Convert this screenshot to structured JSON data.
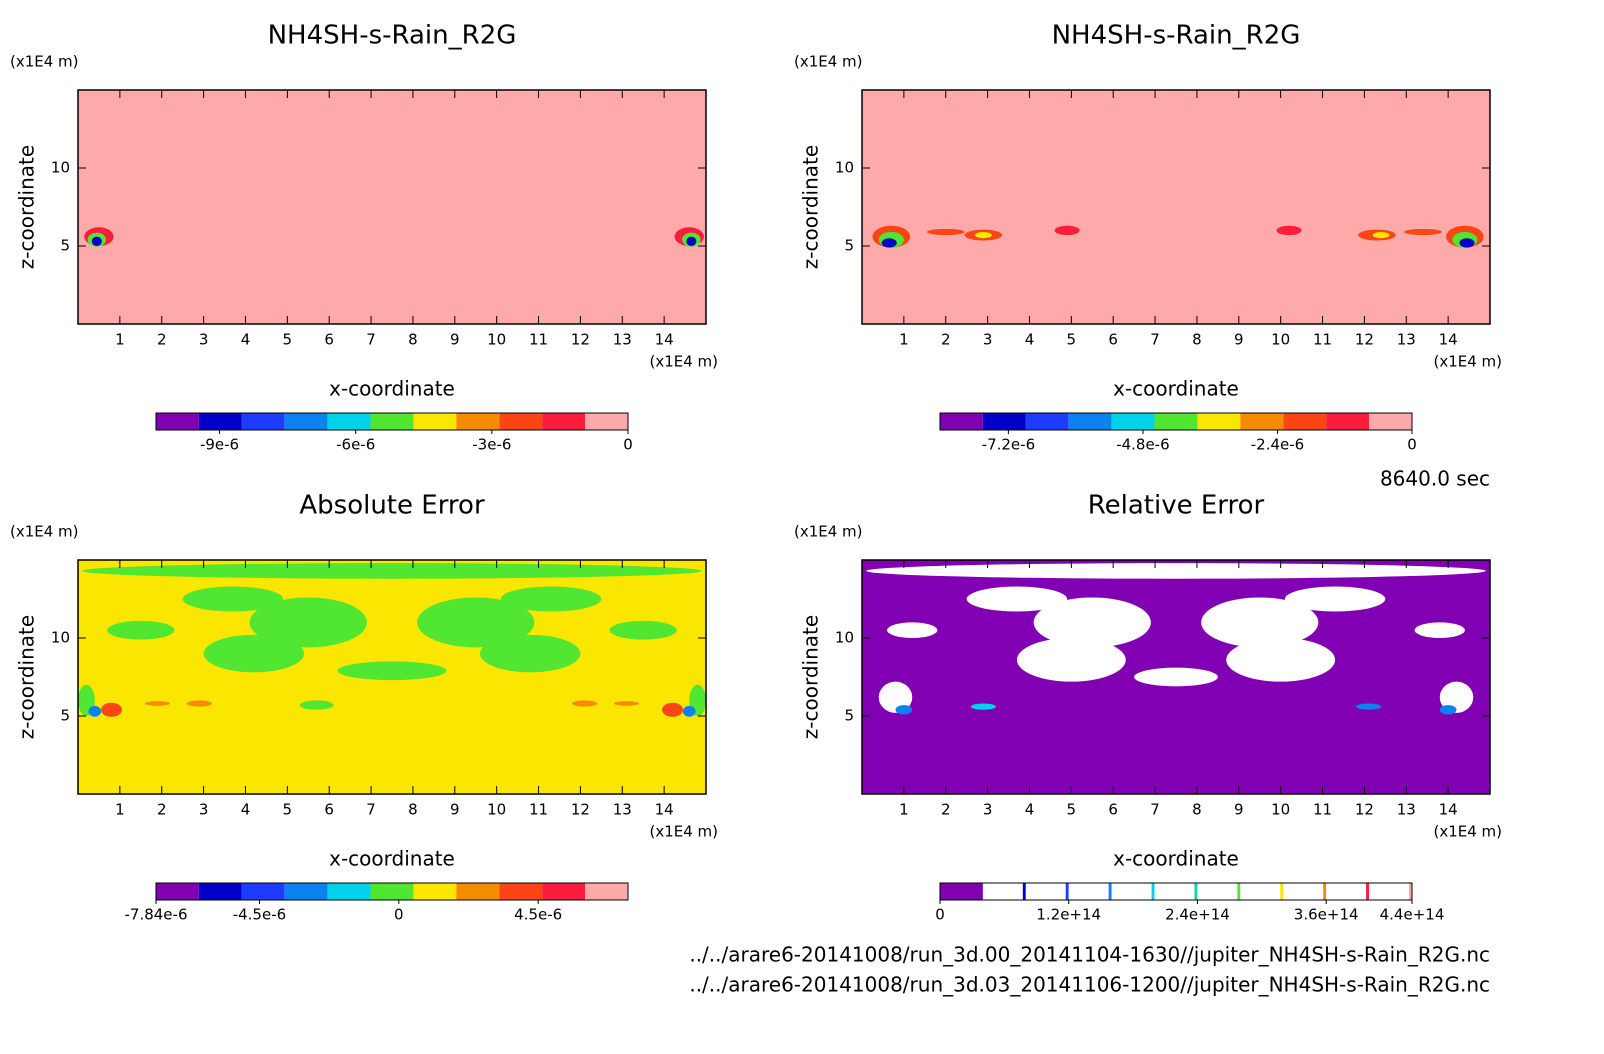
{
  "chart_data": [
    {
      "type": "contour",
      "title": "NH4SH-s-Rain_R2G",
      "xlabel": "x-coordinate",
      "ylabel": "z-coordinate",
      "x_units": "(x1E4 m)",
      "y_units": "(x1E4 m)",
      "xlim": [
        0,
        15
      ],
      "ylim": [
        0,
        15
      ],
      "xticks": [
        1,
        2,
        3,
        4,
        5,
        6,
        7,
        8,
        9,
        10,
        11,
        12,
        13,
        14
      ],
      "yticks": [
        5,
        10
      ],
      "background_color": "#ffaaaa",
      "colorbar": {
        "lim": [
          -1.04e-05,
          0
        ],
        "ticks": [
          {
            "value": -9e-06,
            "label": "-9e-6"
          },
          {
            "value": -6e-06,
            "label": "-6e-6"
          },
          {
            "value": -3e-06,
            "label": "-3e-6"
          },
          0
        ],
        "colors": [
          "#8200b4",
          "#0000c8",
          "#1e3cff",
          "#0a82f0",
          "#00d2ec",
          "#50e632",
          "#fae600",
          "#f58c00",
          "#fa4614",
          "#fa1e3c",
          "#ffaaaa"
        ]
      }
    },
    {
      "type": "contour",
      "title": "NH4SH-s-Rain_R2G",
      "xlabel": "x-coordinate",
      "ylabel": "z-coordinate",
      "x_units": "(x1E4 m)",
      "y_units": "(x1E4 m)",
      "xlim": [
        0,
        15
      ],
      "ylim": [
        0,
        15
      ],
      "xticks": [
        1,
        2,
        3,
        4,
        5,
        6,
        7,
        8,
        9,
        10,
        11,
        12,
        13,
        14
      ],
      "yticks": [
        5,
        10
      ],
      "background_color": "#ffaaaa",
      "colorbar": {
        "lim": [
          -8.42e-06,
          0
        ],
        "ticks": [
          {
            "value": -7.2e-06,
            "label": "-7.2e-6"
          },
          {
            "value": -4.8e-06,
            "label": "-4.8e-6"
          },
          {
            "value": -2.4e-06,
            "label": "-2.4e-6"
          },
          0
        ],
        "colors": [
          "#8200b4",
          "#0000c8",
          "#1e3cff",
          "#0a82f0",
          "#00d2ec",
          "#50e632",
          "#fae600",
          "#f58c00",
          "#fa4614",
          "#fa1e3c",
          "#ffaaaa"
        ]
      }
    },
    {
      "type": "contour",
      "title": "Absolute Error",
      "xlabel": "x-coordinate",
      "ylabel": "z-coordinate",
      "x_units": "(x1E4 m)",
      "y_units": "(x1E4 m)",
      "xlim": [
        0,
        15
      ],
      "ylim": [
        0,
        15
      ],
      "xticks": [
        1,
        2,
        3,
        4,
        5,
        6,
        7,
        8,
        9,
        10,
        11,
        12,
        13,
        14
      ],
      "yticks": [
        5,
        10
      ],
      "background_color": "#fae600",
      "colorbar": {
        "lim": [
          -7.84e-06,
          7.4e-06
        ],
        "ticks": [
          {
            "value": -7.84e-06,
            "label": "-7.84e-6"
          },
          {
            "value": -4.5e-06,
            "label": "-4.5e-6"
          },
          0,
          {
            "value": 4.5e-06,
            "label": "4.5e-6"
          }
        ],
        "colors": [
          "#8200b4",
          "#0000c8",
          "#1e3cff",
          "#0a82f0",
          "#00d2ec",
          "#50e632",
          "#fae600",
          "#f58c00",
          "#fa4614",
          "#fa1e3c",
          "#ffaaaa"
        ]
      }
    },
    {
      "type": "contour",
      "title": "Relative Error",
      "xlabel": "x-coordinate",
      "ylabel": "z-coordinate",
      "x_units": "(x1E4 m)",
      "y_units": "(x1E4 m)",
      "xlim": [
        0,
        15
      ],
      "ylim": [
        0,
        15
      ],
      "xticks": [
        1,
        2,
        3,
        4,
        5,
        6,
        7,
        8,
        9,
        10,
        11,
        12,
        13,
        14
      ],
      "yticks": [
        5,
        10
      ],
      "background_color": "#8200b4",
      "colorbar": {
        "lim": [
          0,
          440000000000000.0
        ],
        "ticks": [
          0,
          {
            "value": 120000000000000.0,
            "label": "1.2e+14"
          },
          {
            "value": 240000000000000.0,
            "label": "2.4e+14"
          },
          {
            "value": 360000000000000.0,
            "label": "3.6e+14"
          },
          {
            "value": 440000000000000.0,
            "label": "4.4e+14"
          }
        ],
        "colors": [
          "#8200b4",
          "#0000c8",
          "#1e3cff",
          "#0a82f0",
          "#00d2ec",
          "#00dcb4",
          "#50e632",
          "#fae600",
          "#f58c00",
          "#fa1e3c",
          "#ffaaaa"
        ]
      }
    }
  ],
  "time": "8640.0 sec",
  "files": [
    "../../arare6-20141008/run_3d.00_20141104-1630//jupiter_NH4SH-s-Rain_R2G.nc",
    "../../arare6-20141008/run_3d.03_20141106-1200//jupiter_NH4SH-s-Rain_R2G.nc"
  ]
}
